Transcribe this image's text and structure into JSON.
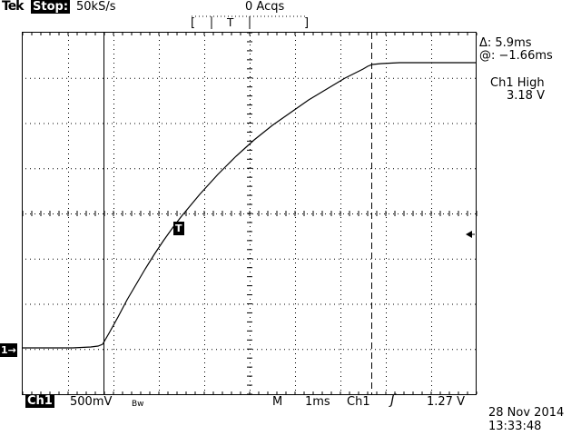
{
  "header": {
    "brand": "Tek",
    "state": "Stop:",
    "sample_rate": "50kS/s",
    "acquisitions": "0 Acqs"
  },
  "cursor": {
    "delta": "Δ: 5.9ms",
    "at": "@: −1.66ms"
  },
  "measurement": {
    "name": "Ch1 High",
    "value": "3.18 V"
  },
  "footer": {
    "channel": "Ch1",
    "volts_per_div": "500mV",
    "bw_limit": "Bw",
    "timebase_label": "M",
    "timebase_value": "1ms",
    "trigger_source": "Ch1",
    "trigger_slope": "ʃ",
    "trigger_level": "1.27 V"
  },
  "timestamp": {
    "date": "28 Nov 2014",
    "time": "13:33:48"
  },
  "markers": {
    "ch1": "1→",
    "trigger": "T",
    "top_trigger": "T"
  },
  "colors": {
    "background": "#ffffff",
    "trace": "#000000",
    "inverse_label": "#000000"
  }
}
